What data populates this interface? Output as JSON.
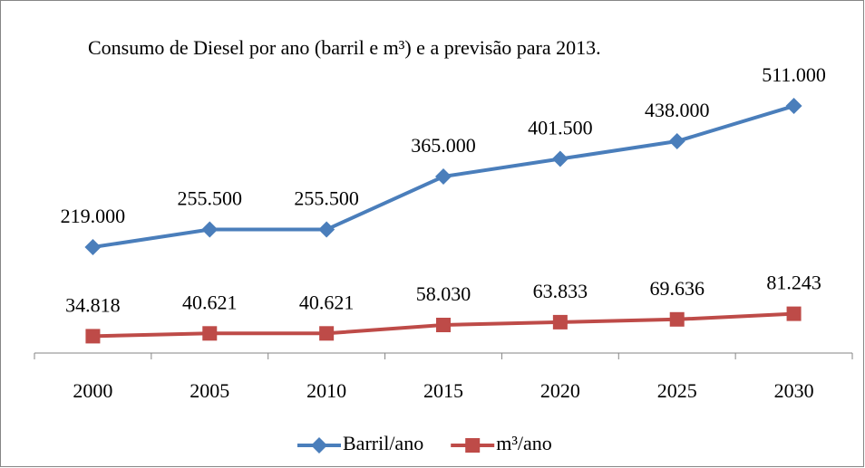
{
  "chart_data": {
    "type": "line",
    "title": "Consumo de Diesel por ano (barril e m³) e a previsão para 2013.",
    "categories": [
      "2000",
      "2005",
      "2010",
      "2015",
      "2020",
      "2025",
      "2030"
    ],
    "series": [
      {
        "name": "Barril/ano",
        "color": "#4a7ebb",
        "marker": "diamond",
        "values": [
          219000,
          255500,
          255500,
          365000,
          401500,
          438000,
          511000
        ],
        "value_labels": [
          "219.000",
          "255.500",
          "255.500",
          "365.000",
          "401.500",
          "438.000",
          "511.000"
        ]
      },
      {
        "name": "m³/ano",
        "color": "#be4b48",
        "marker": "square",
        "values": [
          34818,
          40621,
          40621,
          58030,
          63833,
          69636,
          81243
        ],
        "value_labels": [
          "34.818",
          "40.621",
          "40.621",
          "58.030",
          "63.833",
          "69.636",
          "81.243"
        ]
      }
    ],
    "ylim": [
      0,
      600000
    ],
    "legend": "bottom"
  }
}
